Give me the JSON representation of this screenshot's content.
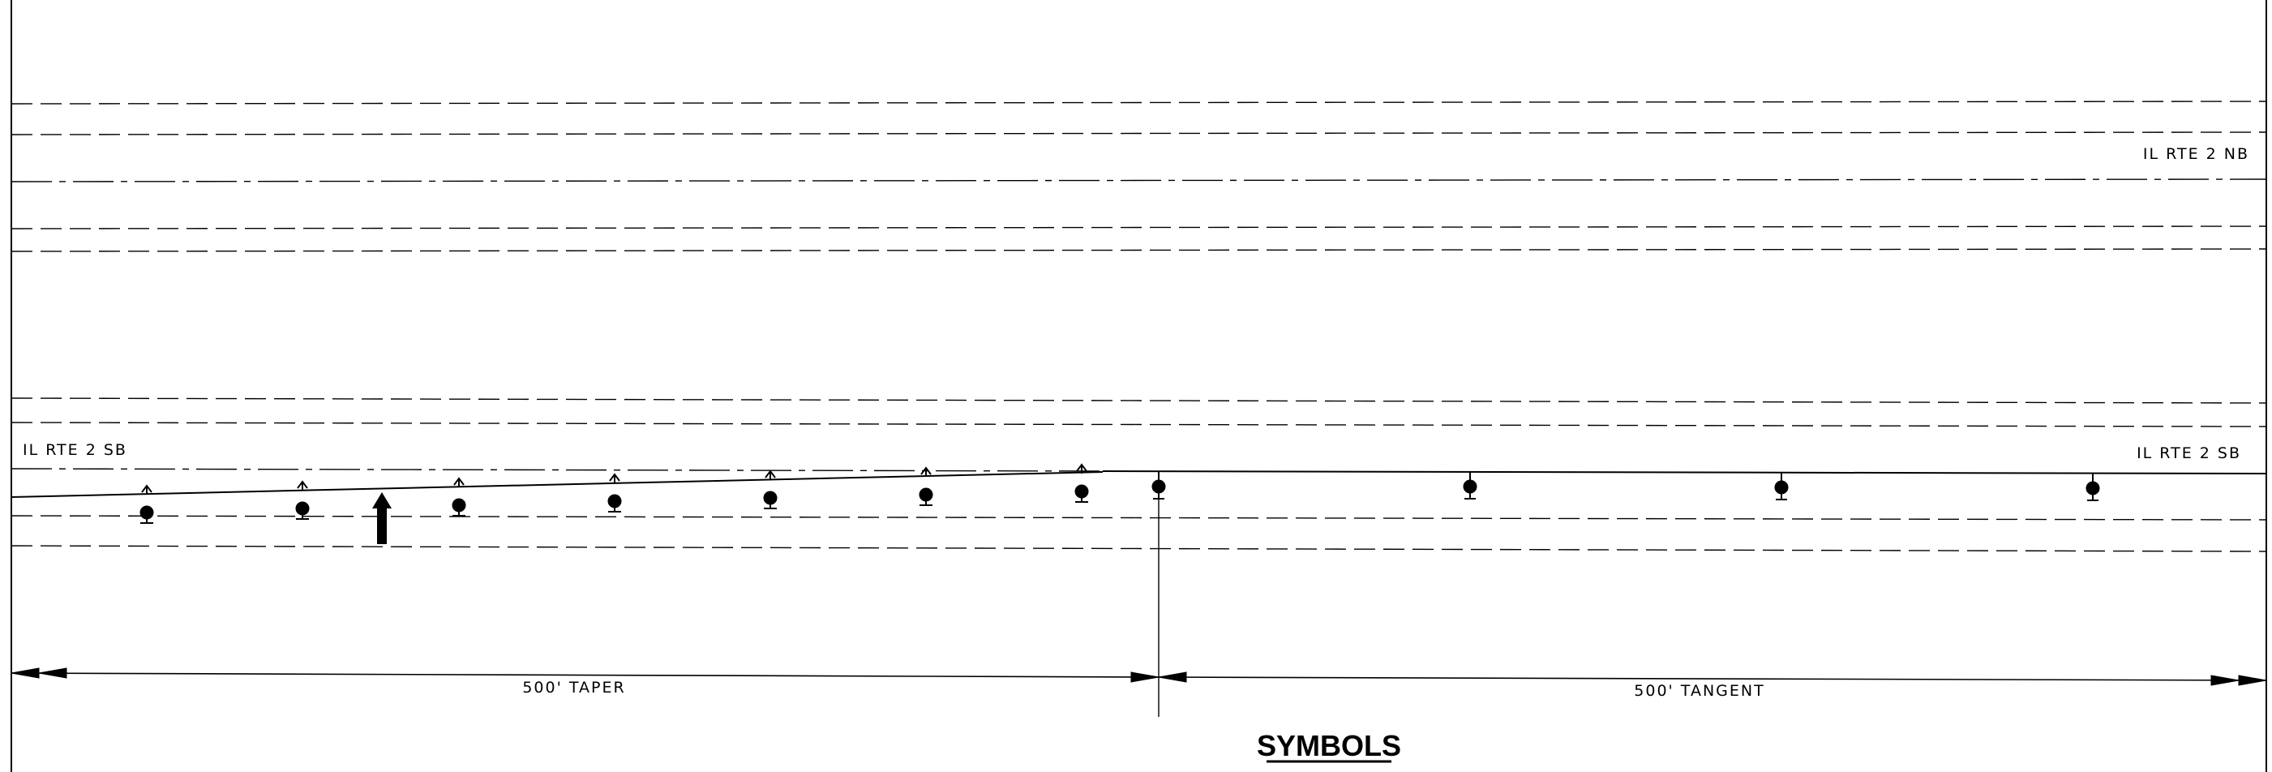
{
  "labels": {
    "nb_road": "IL RTE 2 NB",
    "sb_road_left": "IL RTE 2 SB",
    "sb_road_right": "IL RTE 2 SB",
    "taper_dim": "500' TAPER",
    "tangent_dim": "500' TANGENT",
    "symbols_title": "SYMBOLS"
  },
  "colors": {
    "line": "#000000",
    "background": "#ffffff"
  },
  "symbols": {
    "taper_device": "channelizing-device-with-arrow",
    "tangent_device": "channelizing-device",
    "direction_marker": "traffic-direction-arrow"
  }
}
